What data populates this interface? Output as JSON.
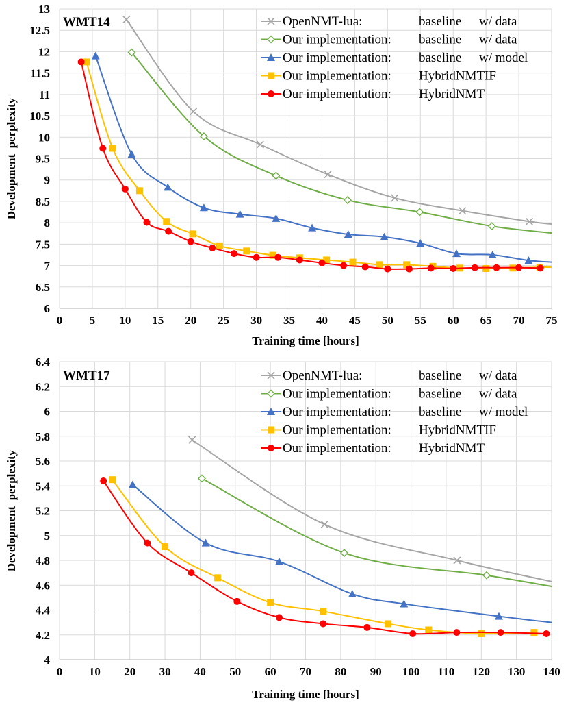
{
  "chart_data": [
    {
      "type": "line",
      "title": "WMT14",
      "xlabel": "Training time [hours]",
      "ylabel": "Development  perplexity",
      "xlim": [
        0,
        75
      ],
      "ylim": [
        6,
        13
      ],
      "xticks": [
        "0",
        "5",
        "10",
        "15",
        "20",
        "25",
        "30",
        "35",
        "40",
        "45",
        "50",
        "55",
        "60",
        "65",
        "70",
        "75"
      ],
      "yticks": [
        "6",
        "6.5",
        "7",
        "7.5",
        "8",
        "8.5",
        "9",
        "9.5",
        "10",
        "10.5",
        "11",
        "11.5",
        "12",
        "12.5",
        "13"
      ],
      "grid": true,
      "legend_position": "top-right",
      "series": [
        {
          "name": "OpenNMT-lua:",
          "config": "baseline",
          "extra": "w/ data",
          "color": "#a5a5a5",
          "marker": "x",
          "x": [
            10.2,
            20.4,
            30.6,
            40.9,
            51.1,
            61.4,
            71.6
          ],
          "y": [
            12.75,
            10.6,
            9.83,
            9.13,
            8.58,
            8.28,
            8.03
          ],
          "curve_end": [
            75,
            7.97
          ]
        },
        {
          "name": "Our implementation:",
          "config": "baseline",
          "extra": "w/ data",
          "color": "#70ad47",
          "marker": "diamond",
          "x": [
            11.0,
            22.0,
            33.0,
            43.9,
            54.9,
            65.9
          ],
          "y": [
            11.98,
            10.02,
            9.1,
            8.53,
            8.25,
            7.92
          ],
          "curve_end": [
            75,
            7.76
          ]
        },
        {
          "name": "Our implementation:",
          "config": "baseline",
          "extra": "w/ model",
          "color": "#4472c4",
          "marker": "triangle",
          "x": [
            5.5,
            11.0,
            16.5,
            22.0,
            27.5,
            33.0,
            38.5,
            44.0,
            49.5,
            55.0,
            60.5,
            66.0,
            71.5
          ],
          "y": [
            11.9,
            9.6,
            8.83,
            8.35,
            8.2,
            8.1,
            7.88,
            7.73,
            7.67,
            7.52,
            7.28,
            7.25,
            7.12
          ],
          "curve_end": [
            75,
            7.08
          ]
        },
        {
          "name": "Our implementation:",
          "config": "HybridNMTIF",
          "extra": "",
          "color": "#ffc000",
          "marker": "square",
          "x": [
            4.1,
            8.1,
            12.2,
            16.3,
            20.3,
            24.4,
            28.5,
            32.5,
            36.6,
            40.7,
            44.7,
            48.8,
            52.9,
            56.9,
            61.0,
            65.0,
            69.1,
            73.2
          ],
          "y": [
            11.76,
            9.74,
            8.75,
            8.03,
            7.74,
            7.46,
            7.34,
            7.24,
            7.18,
            7.13,
            7.08,
            7.02,
            7.02,
            6.98,
            6.94,
            6.93,
            6.94,
            6.96
          ],
          "curve_end": [
            75,
            6.96
          ]
        },
        {
          "name": "Our implementation:",
          "config": "HybridNMT",
          "extra": "",
          "color": "#ff0000",
          "marker": "circle",
          "x": [
            3.3,
            6.6,
            10.0,
            13.3,
            16.6,
            20.0,
            23.3,
            26.6,
            30.0,
            33.3,
            36.6,
            40.0,
            43.3,
            46.6,
            50.0,
            53.3,
            56.6,
            60.0,
            63.3,
            66.6,
            70.0,
            73.3
          ],
          "y": [
            11.76,
            9.74,
            8.79,
            8.01,
            7.8,
            7.56,
            7.41,
            7.28,
            7.19,
            7.19,
            7.13,
            7.06,
            7.0,
            6.97,
            6.92,
            6.92,
            6.94,
            6.93,
            6.95,
            6.95,
            6.95,
            6.94
          ]
        }
      ]
    },
    {
      "type": "line",
      "title": "WMT17",
      "xlabel": "Training time [hours]",
      "ylabel": "Development  perplexity",
      "xlim": [
        0,
        140
      ],
      "ylim": [
        4,
        6.4
      ],
      "xticks": [
        "0",
        "10",
        "20",
        "30",
        "40",
        "50",
        "60",
        "70",
        "80",
        "90",
        "100",
        "110",
        "120",
        "130",
        "140"
      ],
      "yticks": [
        "4",
        "4.2",
        "4.4",
        "4.6",
        "4.8",
        "5",
        "5.2",
        "5.4",
        "5.6",
        "5.8",
        "6",
        "6.2",
        "6.4"
      ],
      "grid": true,
      "legend_position": "top-right",
      "series": [
        {
          "name": "OpenNMT-lua:",
          "config": "baseline",
          "extra": "w/ data",
          "color": "#a5a5a5",
          "marker": "x",
          "x": [
            37.7,
            75.4,
            113.1
          ],
          "y": [
            5.77,
            5.09,
            4.8
          ],
          "curve_end": [
            140,
            4.63
          ]
        },
        {
          "name": "Our implementation:",
          "config": "baseline",
          "extra": "w/ data",
          "color": "#70ad47",
          "marker": "diamond",
          "x": [
            40.5,
            81.0,
            121.5
          ],
          "y": [
            5.46,
            4.86,
            4.68
          ],
          "curve_end": [
            140,
            4.59
          ]
        },
        {
          "name": "Our implementation:",
          "config": "baseline",
          "extra": "w/ model",
          "color": "#4472c4",
          "marker": "triangle",
          "x": [
            20.8,
            41.6,
            62.5,
            83.3,
            98.0,
            125.0
          ],
          "y": [
            5.41,
            4.94,
            4.79,
            4.53,
            4.45,
            4.35
          ],
          "curve_end": [
            140,
            4.3
          ]
        },
        {
          "name": "Our implementation:",
          "config": "HybridNMTIF",
          "extra": "",
          "color": "#ffc000",
          "marker": "square",
          "x": [
            15.0,
            30.0,
            45.0,
            60.0,
            75.0,
            93.5,
            105.0,
            120.0,
            135.0
          ],
          "y": [
            5.45,
            4.91,
            4.66,
            4.46,
            4.39,
            4.29,
            4.24,
            4.21,
            4.22
          ]
        },
        {
          "name": "Our implementation:",
          "config": "HybridNMT",
          "extra": "",
          "color": "#ff0000",
          "marker": "circle",
          "x": [
            12.5,
            25.0,
            37.5,
            50.5,
            62.5,
            75.0,
            87.5,
            100.5,
            113.0,
            125.5,
            138.5
          ],
          "y": [
            5.44,
            4.94,
            4.7,
            4.47,
            4.34,
            4.29,
            4.26,
            4.21,
            4.22,
            4.22,
            4.21
          ]
        }
      ]
    }
  ]
}
